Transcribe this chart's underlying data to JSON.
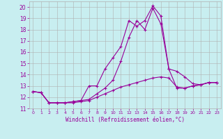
{
  "title": "Windchill (Refroidissement éolien,°C)",
  "background_color": "#c8eef0",
  "grid_color": "#b0b0b0",
  "line_color": "#990099",
  "ylim": [
    11,
    20.5
  ],
  "xlim": [
    -0.5,
    23.5
  ],
  "yticks": [
    11,
    12,
    13,
    14,
    15,
    16,
    17,
    18,
    19,
    20
  ],
  "xticks": [
    0,
    1,
    2,
    3,
    4,
    5,
    6,
    7,
    8,
    9,
    10,
    11,
    12,
    13,
    14,
    15,
    16,
    17,
    18,
    19,
    20,
    21,
    22,
    23
  ],
  "xtick_labels": [
    "0",
    "1",
    "2",
    "3",
    "4",
    "5",
    "6",
    "7",
    "8",
    "9",
    "10",
    "11",
    "12",
    "13",
    "14",
    "15",
    "16",
    "17",
    "18",
    "19",
    "20",
    "21",
    "22",
    "23"
  ],
  "series1_x": [
    0,
    1,
    2,
    3,
    4,
    5,
    6,
    7,
    8,
    9,
    10,
    11,
    12,
    13,
    14,
    15,
    16,
    17,
    18,
    19,
    20,
    21,
    22,
    23
  ],
  "series1_y": [
    12.5,
    12.4,
    11.5,
    11.5,
    11.5,
    11.5,
    11.6,
    11.7,
    12.0,
    12.3,
    12.6,
    12.9,
    13.1,
    13.3,
    13.5,
    13.7,
    13.8,
    13.7,
    12.9,
    12.8,
    13.0,
    13.1,
    13.3,
    13.3
  ],
  "series2_x": [
    0,
    1,
    2,
    3,
    4,
    5,
    6,
    7,
    8,
    9,
    10,
    11,
    12,
    13,
    14,
    15,
    16,
    17,
    18,
    19,
    20,
    21,
    22,
    23
  ],
  "series2_y": [
    12.5,
    12.4,
    11.5,
    11.5,
    11.5,
    11.6,
    11.7,
    13.0,
    13.0,
    14.5,
    15.5,
    16.5,
    18.8,
    18.3,
    18.8,
    20.1,
    19.2,
    14.5,
    14.3,
    13.8,
    13.2,
    13.1,
    13.3,
    13.3
  ],
  "series3_x": [
    0,
    1,
    2,
    3,
    4,
    5,
    6,
    7,
    8,
    9,
    10,
    11,
    12,
    13,
    14,
    15,
    16,
    17,
    18,
    19,
    20,
    21,
    22,
    23
  ],
  "series3_y": [
    12.5,
    12.4,
    11.5,
    11.5,
    11.5,
    11.6,
    11.7,
    11.8,
    12.3,
    12.8,
    13.5,
    15.2,
    17.3,
    18.8,
    18.0,
    19.9,
    18.5,
    14.5,
    12.8,
    12.8,
    13.0,
    13.1,
    13.3,
    13.3
  ]
}
